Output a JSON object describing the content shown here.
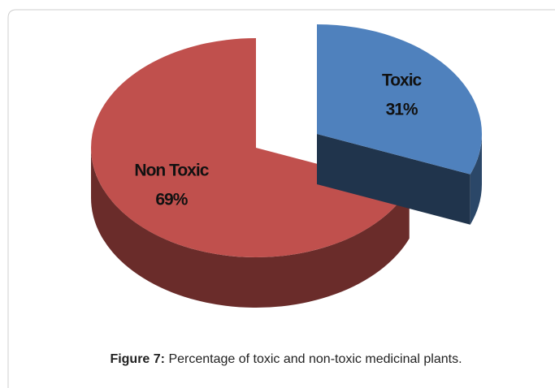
{
  "chart_data": {
    "type": "pie",
    "categories": [
      "Toxic",
      "Non Toxic"
    ],
    "values": [
      31,
      69
    ],
    "value_labels": [
      "31%",
      "69%"
    ],
    "colors": [
      "#4f81bd",
      "#c0504d"
    ],
    "caption_label": "Figure 7:",
    "caption_text": "Percentage of toxic and non-toxic medicinal plants."
  }
}
